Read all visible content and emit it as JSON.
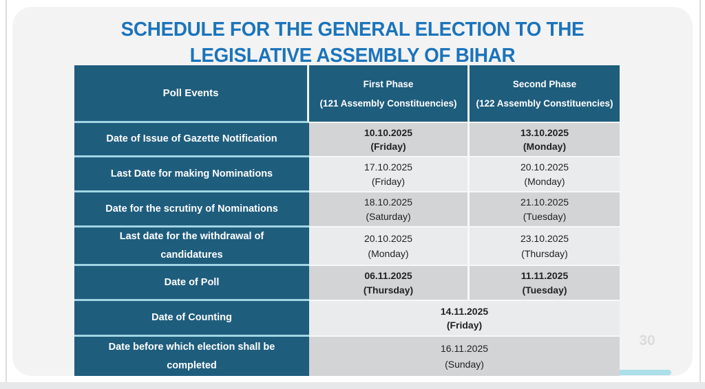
{
  "slide": {
    "title_line1": "SCHEDULE FOR THE GENERAL ELECTION TO THE",
    "title_line2": "LEGISLATIVE ASSEMBLY OF BIHAR",
    "page_number": "30"
  },
  "table": {
    "header": {
      "events": "Poll Events",
      "first_phase_title": "First Phase",
      "first_phase_sub": "(121 Assembly Constituencies)",
      "second_phase_title": "Second Phase",
      "second_phase_sub": "(122 Assembly Constituencies)"
    },
    "rows": [
      {
        "event": "Date of Issue of Gazette Notification",
        "first_date": "10.10.2025",
        "first_day": "(Friday)",
        "second_date": "13.10.2025",
        "second_day": "(Monday)"
      },
      {
        "event": "Last Date for making Nominations",
        "first_date": "17.10.2025",
        "first_day": "(Friday)",
        "second_date": "20.10.2025",
        "second_day": "(Monday)"
      },
      {
        "event": "Date for the scrutiny of Nominations",
        "first_date": "18.10.2025",
        "first_day": "(Saturday)",
        "second_date": "21.10.2025",
        "second_day": "(Tuesday)"
      },
      {
        "event": "Last date for the withdrawal of candidatures",
        "first_date": "20.10.2025",
        "first_day": "(Monday)",
        "second_date": "23.10.2025",
        "second_day": "(Thursday)"
      },
      {
        "event": "Date of Poll",
        "first_date": "06.11.2025",
        "first_day": "(Thursday)",
        "second_date": "11.11.2025",
        "second_day": "(Tuesday)"
      },
      {
        "event": "Date of Counting",
        "date": "14.11.2025",
        "day": "(Friday)"
      },
      {
        "event": "Date before which election shall be completed",
        "date": "16.11.2025",
        "day": "(Sunday)"
      }
    ]
  },
  "colors": {
    "title_blue": "#1b74bb",
    "header_teal": "#1f5d7d",
    "row_separator_blue": "#a2d6e4",
    "cell_gray_dark": "#d2d4d6",
    "cell_gray_light": "#e9ebed",
    "separator_white": "#f7f8f9",
    "progress_bar_cyan": "#abdfe9",
    "card_background": "#f3f3f4"
  }
}
